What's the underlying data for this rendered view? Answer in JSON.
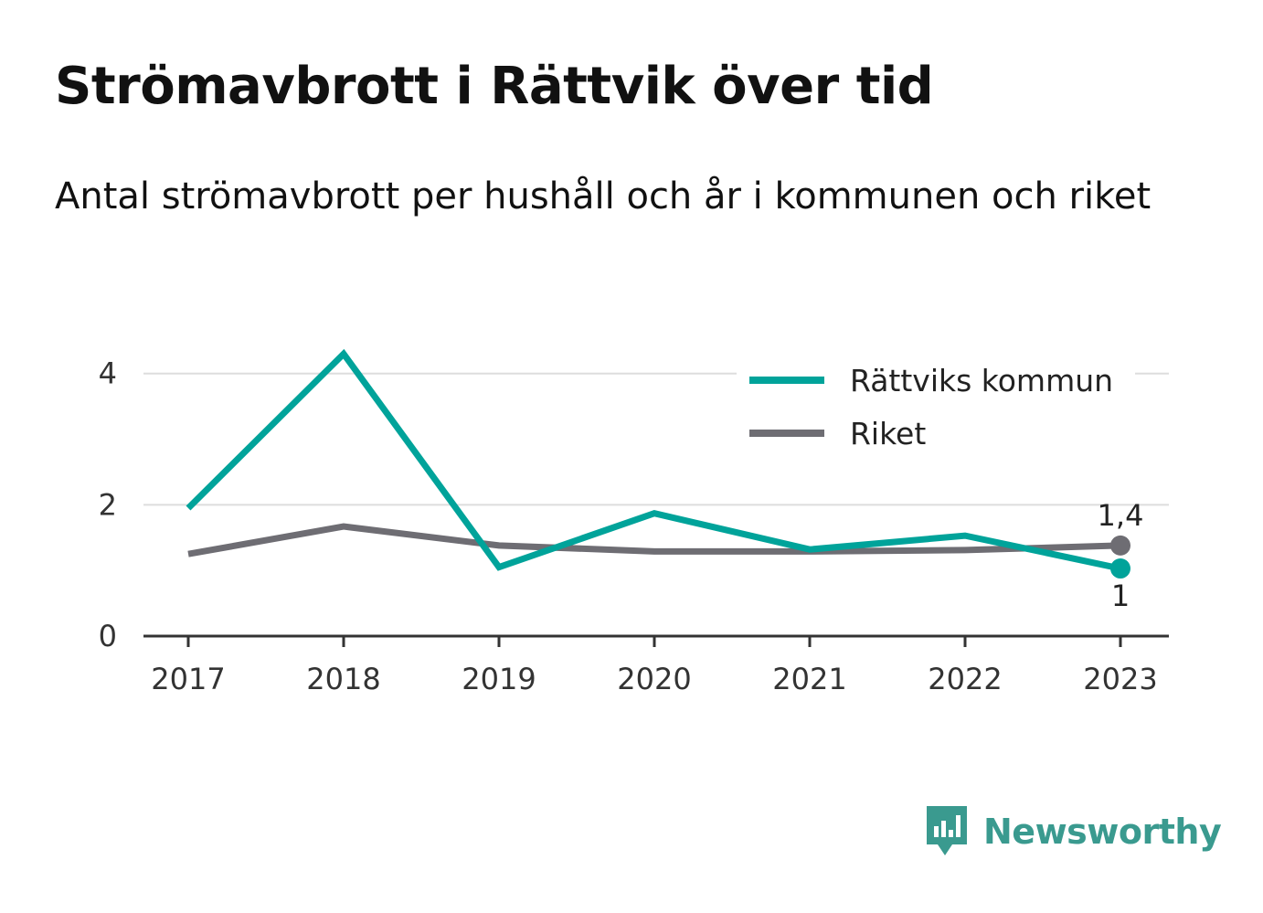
{
  "title": "Strömavbrott i Rättvik över tid",
  "subtitle": "Antal strömavbrott per hushåll och år i kommunen och riket",
  "brand": {
    "name": "Newsworthy",
    "icon": "newsworthy-logo-icon",
    "color": "#3a9a8f"
  },
  "colors": {
    "kommun": "#00a39a",
    "riket": "#6e6d73",
    "grid": "#dddddd",
    "axis": "#333333"
  },
  "chart_data": {
    "type": "line",
    "categories": [
      "2017",
      "2018",
      "2019",
      "2020",
      "2021",
      "2022",
      "2023"
    ],
    "series": [
      {
        "name": "Rättviks kommun",
        "color": "#00a39a",
        "values": [
          1.95,
          4.3,
          1.05,
          1.87,
          1.32,
          1.53,
          1.03
        ]
      },
      {
        "name": "Riket",
        "color": "#6e6d73",
        "values": [
          1.25,
          1.67,
          1.38,
          1.29,
          1.29,
          1.31,
          1.38
        ]
      }
    ],
    "yticks": [
      "0",
      "2",
      "4"
    ],
    "ylim": [
      0,
      4.4
    ],
    "grid": true,
    "legend": "top-right",
    "end_labels": {
      "Rättviks kommun": "1",
      "Riket": "1,4"
    }
  }
}
